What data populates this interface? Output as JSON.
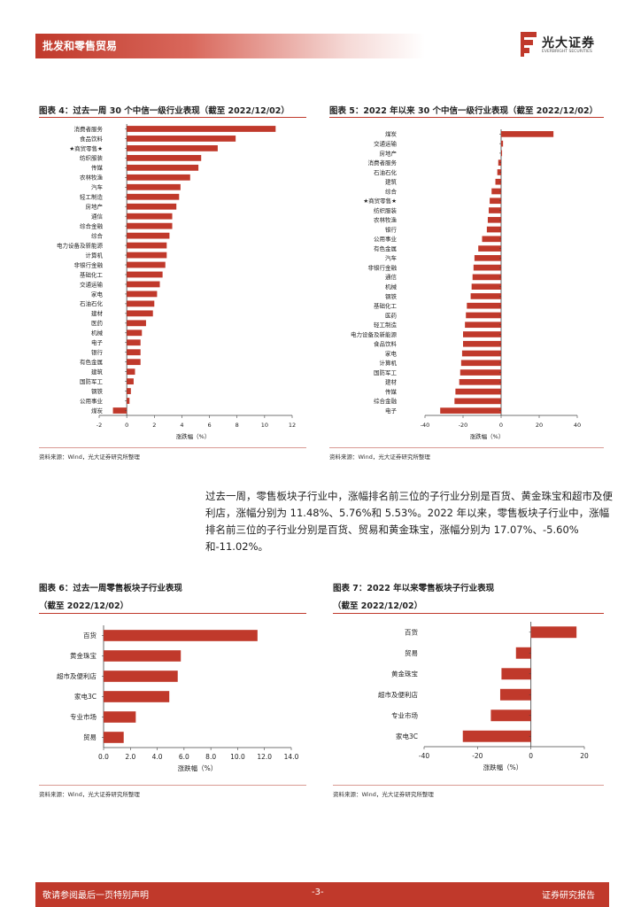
{
  "header": {
    "section": "批发和零售贸易"
  },
  "brand": {
    "name_cn": "光大证券",
    "name_en": "EVERBRIGHT SECURITIES",
    "accent": "#c0392b"
  },
  "fig4": {
    "title": "图表 4：过去一周 30 个中信一级行业表现（截至 2022/12/02）",
    "source": "资料来源：Wind，光大证券研究所整理",
    "chart_data": {
      "type": "bar",
      "orientation": "horizontal",
      "categories": [
        "消费者服务",
        "食品饮料",
        "★商贸零售★",
        "纺织服装",
        "传媒",
        "农林牧渔",
        "汽车",
        "轻工制造",
        "房地产",
        "通信",
        "综合金融",
        "综合",
        "电力设备及新能源",
        "计算机",
        "非银行金融",
        "基础化工",
        "交通运输",
        "家电",
        "石油石化",
        "建材",
        "医药",
        "机械",
        "电子",
        "银行",
        "有色金属",
        "建筑",
        "国防军工",
        "钢铁",
        "公用事业",
        "煤炭"
      ],
      "values": [
        10.8,
        7.9,
        6.6,
        5.4,
        5.2,
        4.6,
        3.9,
        3.8,
        3.6,
        3.3,
        3.3,
        3.1,
        2.9,
        2.9,
        2.8,
        2.6,
        2.4,
        2.2,
        2.0,
        1.9,
        1.4,
        1.1,
        1.0,
        1.0,
        1.0,
        0.6,
        0.5,
        0.3,
        0.2,
        -1.0
      ],
      "xlabel": "涨跌幅（%）",
      "xlim": [
        -2,
        12
      ],
      "xticks": [
        -2,
        0,
        2,
        4,
        6,
        8,
        10,
        12
      ]
    }
  },
  "fig5": {
    "title": "图表 5：2022 年以来 30 个中信一级行业表现（截至 2022/12/02）",
    "source": "资料来源：Wind，光大证券研究所整理",
    "chart_data": {
      "type": "bar",
      "orientation": "horizontal",
      "categories": [
        "煤炭",
        "交通运输",
        "房地产",
        "消费者服务",
        "石油石化",
        "建筑",
        "综合",
        "★商贸零售★",
        "纺织服装",
        "农林牧渔",
        "银行",
        "公用事业",
        "有色金属",
        "汽车",
        "非银行金融",
        "通信",
        "机械",
        "钢铁",
        "基础化工",
        "医药",
        "轻工制造",
        "电力设备及新能源",
        "食品饮料",
        "家电",
        "计算机",
        "国防军工",
        "建材",
        "传媒",
        "综合金融",
        "电子"
      ],
      "values": [
        27.5,
        1.0,
        0.5,
        -1.5,
        -2.0,
        -3.0,
        -5.0,
        -6.0,
        -6.5,
        -7.0,
        -7.5,
        -10.0,
        -12.0,
        -14.0,
        -14.5,
        -15.0,
        -15.5,
        -16.0,
        -18.0,
        -18.5,
        -19.0,
        -20.0,
        -20.0,
        -20.5,
        -21.0,
        -21.5,
        -22.0,
        -24.0,
        -24.5,
        -32.0
      ],
      "xlabel": "涨跌幅（%）",
      "xlim": [
        -40,
        40
      ],
      "xticks": [
        -40,
        -20,
        0,
        20,
        40
      ]
    }
  },
  "paragraph": "过去一周，零售板块子行业中，涨幅排名前三位的子行业分别是百货、黄金珠宝和超市及便利店，涨幅分别为 11.48%、5.76%和 5.53%。2022 年以来，零售板块子行业中，涨幅排名前三位的子行业分别是百货、贸易和黄金珠宝，涨幅分别为 17.07%、-5.60%和-11.02%。",
  "fig6": {
    "title": "图表 6：过去一周零售板块子行业表现",
    "subtitle": "（截至 2022/12/02）",
    "source": "资料来源：Wind，光大证券研究所整理",
    "chart_data": {
      "type": "bar",
      "orientation": "horizontal",
      "categories": [
        "百货",
        "黄金珠宝",
        "超市及便利店",
        "家电3C",
        "专业市场",
        "贸易"
      ],
      "values": [
        11.48,
        5.76,
        5.53,
        4.9,
        2.4,
        1.5
      ],
      "xlabel": "涨跌幅（%）",
      "xlim": [
        0,
        14
      ],
      "xticks": [
        0.0,
        2.0,
        4.0,
        6.0,
        8.0,
        10.0,
        12.0,
        14.0
      ]
    }
  },
  "fig7": {
    "title": "图表 7：2022 年以来零售板块子行业表现",
    "subtitle": "（截至 2022/12/02）",
    "source": "资料来源：Wind，光大证券研究所整理",
    "chart_data": {
      "type": "bar",
      "orientation": "horizontal",
      "categories": [
        "百货",
        "贸易",
        "黄金珠宝",
        "超市及便利店",
        "专业市场",
        "家电3C"
      ],
      "values": [
        17.07,
        -5.6,
        -11.02,
        -11.5,
        -15.0,
        -25.5
      ],
      "xlabel": "涨跌幅（%）",
      "xlim": [
        -40,
        20
      ],
      "xticks": [
        -40,
        -20,
        0,
        20
      ]
    }
  },
  "footer": {
    "disclaimer": "敬请参阅最后一页特别声明",
    "page": "-3-",
    "doc_type": "证券研究报告"
  }
}
